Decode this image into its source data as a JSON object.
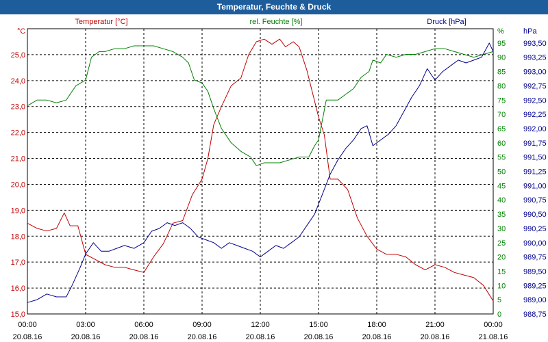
{
  "window": {
    "title": "Temperatur, Feuchte & Druck"
  },
  "colors": {
    "temperature": "#c00000",
    "humidity": "#008000",
    "pressure": "#00008b",
    "title_bar": "#1e5d9c",
    "grid": "#000000",
    "text": "#000000"
  },
  "chart_data": {
    "type": "line",
    "title": "Temperatur, Feuchte & Druck",
    "grid": true,
    "x_ticks": [
      {
        "time": "00:00",
        "date": "20.08.16"
      },
      {
        "time": "03:00",
        "date": "20.08.16"
      },
      {
        "time": "06:00",
        "date": "20.08.16"
      },
      {
        "time": "09:00",
        "date": "20.08.16"
      },
      {
        "time": "12:00",
        "date": "20.08.16"
      },
      {
        "time": "15:00",
        "date": "20.08.16"
      },
      {
        "time": "18:00",
        "date": "20.08.16"
      },
      {
        "time": "21:00",
        "date": "20.08.16"
      },
      {
        "time": "00:00",
        "date": "21.08.16"
      }
    ],
    "x_range_hours": [
      0,
      24
    ],
    "axes": {
      "temperature": {
        "unit": "°C",
        "label": "Temperatur [°C]",
        "range": [
          15.0,
          26.0
        ],
        "ticks": [
          "15,0",
          "16,0",
          "17,0",
          "18,0",
          "19,0",
          "20,0",
          "21,0",
          "22,0",
          "23,0",
          "24,0",
          "25,0"
        ]
      },
      "humidity": {
        "unit": "%",
        "label": "rel. Feuchte [%]",
        "range": [
          0,
          100
        ],
        "ticks": [
          "0",
          "5",
          "10",
          "15",
          "20",
          "25",
          "30",
          "35",
          "40",
          "45",
          "50",
          "55",
          "60",
          "65",
          "70",
          "75",
          "80",
          "85",
          "90",
          "95"
        ]
      },
      "pressure": {
        "unit": "hPa",
        "label": "Druck [hPa]",
        "range": [
          988.75,
          993.75
        ],
        "ticks": [
          "988,75",
          "989,00",
          "989,25",
          "989,50",
          "989,75",
          "990,00",
          "990,25",
          "990,50",
          "990,75",
          "991,00",
          "991,25",
          "991,50",
          "991,75",
          "992,00",
          "992,25",
          "992,50",
          "992,75",
          "993,00",
          "993,25",
          "993,50"
        ]
      }
    },
    "series": [
      {
        "name": "Temperatur [°C]",
        "axis": "temperature",
        "points": [
          [
            0,
            18.5
          ],
          [
            0.5,
            18.3
          ],
          [
            1,
            18.2
          ],
          [
            1.5,
            18.3
          ],
          [
            1.9,
            18.9
          ],
          [
            2.2,
            18.4
          ],
          [
            2.6,
            18.4
          ],
          [
            3,
            17.3
          ],
          [
            3.5,
            17.1
          ],
          [
            4,
            16.9
          ],
          [
            4.5,
            16.8
          ],
          [
            5,
            16.8
          ],
          [
            5.5,
            16.7
          ],
          [
            6,
            16.6
          ],
          [
            6.5,
            17.2
          ],
          [
            7,
            17.7
          ],
          [
            7.5,
            18.5
          ],
          [
            8,
            18.6
          ],
          [
            8.5,
            19.6
          ],
          [
            9,
            20.2
          ],
          [
            9.3,
            21.0
          ],
          [
            9.6,
            22.3
          ],
          [
            10,
            23.0
          ],
          [
            10.5,
            23.8
          ],
          [
            11,
            24.1
          ],
          [
            11.4,
            25.0
          ],
          [
            11.8,
            25.5
          ],
          [
            12.2,
            25.6
          ],
          [
            12.6,
            25.4
          ],
          [
            13,
            25.6
          ],
          [
            13.3,
            25.3
          ],
          [
            13.7,
            25.5
          ],
          [
            14,
            25.3
          ],
          [
            14.4,
            24.4
          ],
          [
            14.7,
            23.5
          ],
          [
            15,
            22.6
          ],
          [
            15.3,
            21.9
          ],
          [
            15.6,
            20.2
          ],
          [
            16,
            20.2
          ],
          [
            16.5,
            19.8
          ],
          [
            17,
            18.7
          ],
          [
            17.5,
            18.0
          ],
          [
            18,
            17.5
          ],
          [
            18.5,
            17.3
          ],
          [
            19,
            17.3
          ],
          [
            19.5,
            17.2
          ],
          [
            20,
            16.9
          ],
          [
            20.5,
            16.7
          ],
          [
            21,
            16.9
          ],
          [
            21.5,
            16.8
          ],
          [
            22,
            16.6
          ],
          [
            22.5,
            16.5
          ],
          [
            23,
            16.4
          ],
          [
            23.5,
            16.1
          ],
          [
            24,
            15.5
          ]
        ]
      },
      {
        "name": "rel. Feuchte [%]",
        "axis": "humidity",
        "points": [
          [
            0,
            73
          ],
          [
            0.5,
            75
          ],
          [
            1,
            75
          ],
          [
            1.5,
            74
          ],
          [
            2,
            75
          ],
          [
            2.2,
            77
          ],
          [
            2.5,
            80
          ],
          [
            3,
            82
          ],
          [
            3.3,
            90
          ],
          [
            3.7,
            92
          ],
          [
            4,
            92
          ],
          [
            4.5,
            93
          ],
          [
            5,
            93
          ],
          [
            5.5,
            94
          ],
          [
            6,
            94
          ],
          [
            6.5,
            94
          ],
          [
            7,
            93
          ],
          [
            7.5,
            92
          ],
          [
            8,
            90
          ],
          [
            8.3,
            88
          ],
          [
            8.6,
            82
          ],
          [
            9,
            81
          ],
          [
            9.3,
            78
          ],
          [
            9.6,
            72
          ],
          [
            10,
            65
          ],
          [
            10.5,
            60
          ],
          [
            11,
            57
          ],
          [
            11.5,
            55
          ],
          [
            11.8,
            52
          ],
          [
            12.2,
            53
          ],
          [
            12.6,
            53
          ],
          [
            13,
            53
          ],
          [
            13.5,
            54
          ],
          [
            14,
            55
          ],
          [
            14.5,
            55
          ],
          [
            14.8,
            59
          ],
          [
            15,
            61
          ],
          [
            15.4,
            75
          ],
          [
            16,
            75
          ],
          [
            16.4,
            77
          ],
          [
            16.8,
            79
          ],
          [
            17.2,
            83
          ],
          [
            17.6,
            85
          ],
          [
            17.8,
            89
          ],
          [
            18.2,
            88
          ],
          [
            18.5,
            91
          ],
          [
            19,
            90
          ],
          [
            19.5,
            91
          ],
          [
            20,
            91
          ],
          [
            20.5,
            92
          ],
          [
            21,
            93
          ],
          [
            21.5,
            93
          ],
          [
            22,
            92
          ],
          [
            22.5,
            91
          ],
          [
            23,
            90
          ],
          [
            23.5,
            91
          ],
          [
            24,
            92
          ]
        ]
      },
      {
        "name": "Druck [hPa]",
        "axis": "pressure",
        "points": [
          [
            0,
            988.95
          ],
          [
            0.5,
            989.0
          ],
          [
            1,
            989.1
          ],
          [
            1.5,
            989.05
          ],
          [
            2,
            989.05
          ],
          [
            2.3,
            989.25
          ],
          [
            2.7,
            989.55
          ],
          [
            3,
            989.8
          ],
          [
            3.4,
            990.0
          ],
          [
            3.8,
            989.85
          ],
          [
            4.2,
            989.85
          ],
          [
            4.6,
            989.9
          ],
          [
            5,
            989.95
          ],
          [
            5.5,
            989.9
          ],
          [
            6,
            990.0
          ],
          [
            6.4,
            990.2
          ],
          [
            6.8,
            990.25
          ],
          [
            7.2,
            990.35
          ],
          [
            7.6,
            990.3
          ],
          [
            8,
            990.35
          ],
          [
            8.4,
            990.25
          ],
          [
            8.8,
            990.1
          ],
          [
            9.2,
            990.05
          ],
          [
            9.6,
            990.0
          ],
          [
            10,
            989.9
          ],
          [
            10.4,
            990.0
          ],
          [
            10.8,
            989.95
          ],
          [
            11.2,
            989.9
          ],
          [
            11.6,
            989.85
          ],
          [
            12,
            989.75
          ],
          [
            12.4,
            989.85
          ],
          [
            12.8,
            989.95
          ],
          [
            13.2,
            989.9
          ],
          [
            13.6,
            990.0
          ],
          [
            14,
            990.1
          ],
          [
            14.4,
            990.3
          ],
          [
            14.8,
            990.5
          ],
          [
            15.2,
            990.85
          ],
          [
            15.6,
            991.2
          ],
          [
            16,
            991.45
          ],
          [
            16.4,
            991.65
          ],
          [
            16.8,
            991.8
          ],
          [
            17.2,
            992.0
          ],
          [
            17.5,
            992.05
          ],
          [
            17.8,
            991.7
          ],
          [
            18.2,
            991.8
          ],
          [
            18.6,
            991.9
          ],
          [
            19,
            992.05
          ],
          [
            19.4,
            992.3
          ],
          [
            19.8,
            992.55
          ],
          [
            20.2,
            992.75
          ],
          [
            20.6,
            993.05
          ],
          [
            21,
            992.85
          ],
          [
            21.4,
            993.0
          ],
          [
            21.8,
            993.1
          ],
          [
            22.2,
            993.2
          ],
          [
            22.6,
            993.15
          ],
          [
            23,
            993.2
          ],
          [
            23.4,
            993.25
          ],
          [
            23.8,
            993.5
          ],
          [
            24,
            993.35
          ]
        ]
      }
    ]
  }
}
